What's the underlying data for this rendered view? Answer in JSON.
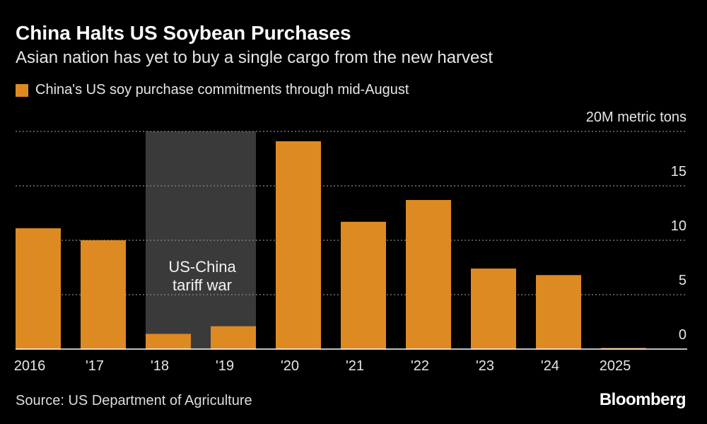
{
  "header": {
    "title": "China Halts US Soybean Purchases",
    "subtitle": "Asian nation has yet to buy a single cargo from the new harvest"
  },
  "footer": {
    "source": "Source: US Department of Agriculture",
    "brand": "Bloomberg"
  },
  "colors": {
    "bar": "#de8a22",
    "shade": "#3a3a3a",
    "grid": "#8a8a8a",
    "baseline": "#ffffff",
    "background": "#000000"
  },
  "chart_data": {
    "type": "bar",
    "categories": [
      "2016",
      "'17",
      "'18",
      "'19",
      "'20",
      "'21",
      "'22",
      "'23",
      "'24",
      "2025"
    ],
    "series": [
      {
        "name": "China's US soy purchase commitments through mid-August",
        "values": [
          11.1,
          10.0,
          1.4,
          2.1,
          19.1,
          11.7,
          13.7,
          7.4,
          6.8,
          0.1
        ]
      }
    ],
    "ylabel": "20M metric tons",
    "ylim": [
      0,
      20
    ],
    "yticks": [
      {
        "value": 0,
        "label": "0"
      },
      {
        "value": 5,
        "label": "5"
      },
      {
        "value": 10,
        "label": "10"
      },
      {
        "value": 15,
        "label": "15"
      },
      {
        "value": 20,
        "label": "20M metric tons"
      }
    ],
    "grid": true,
    "legend_position": "top-left",
    "shaded_region": {
      "from": "'18",
      "to": "'19",
      "label_lines": [
        "US-China",
        "tariff war"
      ]
    }
  }
}
